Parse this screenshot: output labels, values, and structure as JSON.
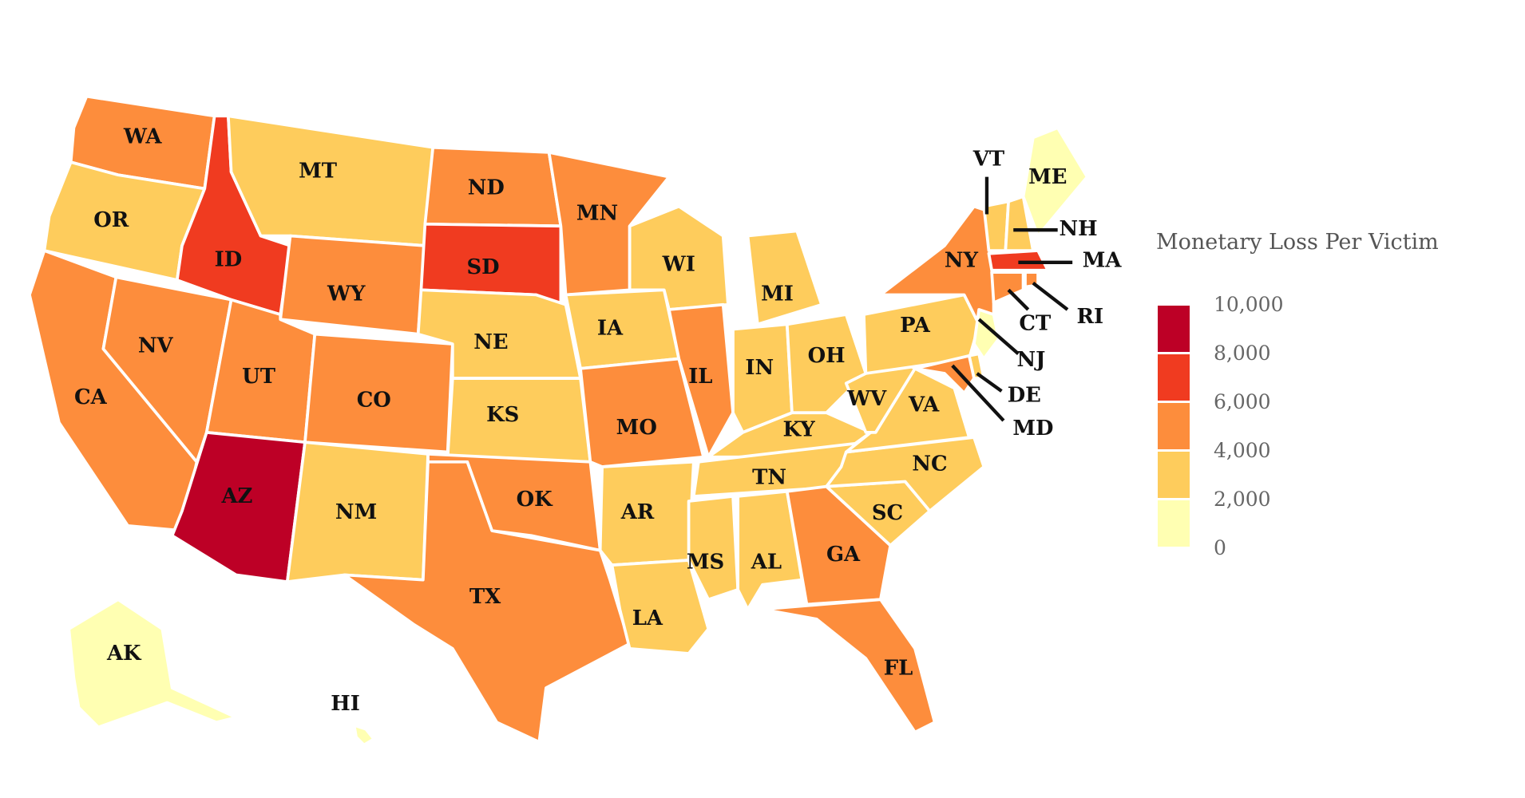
{
  "chart_data": {
    "type": "choropleth",
    "title": "",
    "legend": {
      "title": "Monetary Loss Per Victim",
      "placement": "right",
      "ticks": [
        "10,000",
        "8,000",
        "6,000",
        "4,000",
        "2,000",
        "0"
      ],
      "bins": [
        {
          "range": [
            0,
            2000
          ],
          "color": "#ffffb2"
        },
        {
          "range": [
            2000,
            4000
          ],
          "color": "#fecc5c"
        },
        {
          "range": [
            4000,
            6000
          ],
          "color": "#fd8d3c"
        },
        {
          "range": [
            6000,
            8000
          ],
          "color": "#f03b20"
        },
        {
          "range": [
            8000,
            10000
          ],
          "color": "#bd0026"
        }
      ]
    },
    "states": [
      {
        "code": "WA",
        "bin": [
          4000,
          6000
        ]
      },
      {
        "code": "OR",
        "bin": [
          2000,
          4000
        ]
      },
      {
        "code": "CA",
        "bin": [
          4000,
          6000
        ]
      },
      {
        "code": "NV",
        "bin": [
          4000,
          6000
        ]
      },
      {
        "code": "ID",
        "bin": [
          6000,
          8000
        ]
      },
      {
        "code": "MT",
        "bin": [
          2000,
          4000
        ]
      },
      {
        "code": "WY",
        "bin": [
          4000,
          6000
        ]
      },
      {
        "code": "UT",
        "bin": [
          4000,
          6000
        ]
      },
      {
        "code": "AZ",
        "bin": [
          8000,
          10000
        ]
      },
      {
        "code": "CO",
        "bin": [
          4000,
          6000
        ]
      },
      {
        "code": "NM",
        "bin": [
          2000,
          4000
        ]
      },
      {
        "code": "ND",
        "bin": [
          4000,
          6000
        ]
      },
      {
        "code": "SD",
        "bin": [
          6000,
          8000
        ]
      },
      {
        "code": "NE",
        "bin": [
          2000,
          4000
        ]
      },
      {
        "code": "KS",
        "bin": [
          2000,
          4000
        ]
      },
      {
        "code": "OK",
        "bin": [
          4000,
          6000
        ]
      },
      {
        "code": "TX",
        "bin": [
          4000,
          6000
        ]
      },
      {
        "code": "MN",
        "bin": [
          4000,
          6000
        ]
      },
      {
        "code": "IA",
        "bin": [
          2000,
          4000
        ]
      },
      {
        "code": "MO",
        "bin": [
          4000,
          6000
        ]
      },
      {
        "code": "AR",
        "bin": [
          2000,
          4000
        ]
      },
      {
        "code": "LA",
        "bin": [
          2000,
          4000
        ]
      },
      {
        "code": "WI",
        "bin": [
          2000,
          4000
        ]
      },
      {
        "code": "IL",
        "bin": [
          4000,
          6000
        ]
      },
      {
        "code": "MI",
        "bin": [
          2000,
          4000
        ]
      },
      {
        "code": "IN",
        "bin": [
          2000,
          4000
        ]
      },
      {
        "code": "OH",
        "bin": [
          2000,
          4000
        ]
      },
      {
        "code": "KY",
        "bin": [
          2000,
          4000
        ]
      },
      {
        "code": "TN",
        "bin": [
          2000,
          4000
        ]
      },
      {
        "code": "MS",
        "bin": [
          2000,
          4000
        ]
      },
      {
        "code": "AL",
        "bin": [
          2000,
          4000
        ]
      },
      {
        "code": "GA",
        "bin": [
          4000,
          6000
        ]
      },
      {
        "code": "FL",
        "bin": [
          4000,
          6000
        ]
      },
      {
        "code": "SC",
        "bin": [
          2000,
          4000
        ]
      },
      {
        "code": "NC",
        "bin": [
          2000,
          4000
        ]
      },
      {
        "code": "VA",
        "bin": [
          2000,
          4000
        ]
      },
      {
        "code": "WV",
        "bin": [
          2000,
          4000
        ]
      },
      {
        "code": "PA",
        "bin": [
          2000,
          4000
        ]
      },
      {
        "code": "NY",
        "bin": [
          4000,
          6000
        ]
      },
      {
        "code": "VT",
        "bin": [
          2000,
          4000
        ]
      },
      {
        "code": "NH",
        "bin": [
          2000,
          4000
        ]
      },
      {
        "code": "ME",
        "bin": [
          0,
          2000
        ]
      },
      {
        "code": "MA",
        "bin": [
          6000,
          8000
        ]
      },
      {
        "code": "CT",
        "bin": [
          4000,
          6000
        ]
      },
      {
        "code": "RI",
        "bin": [
          4000,
          6000
        ]
      },
      {
        "code": "NJ",
        "bin": [
          0,
          2000
        ]
      },
      {
        "code": "DE",
        "bin": [
          2000,
          4000
        ]
      },
      {
        "code": "MD",
        "bin": [
          4000,
          6000
        ]
      },
      {
        "code": "AK",
        "bin": [
          0,
          2000
        ]
      },
      {
        "code": "HI",
        "bin": [
          0,
          2000
        ]
      }
    ]
  }
}
